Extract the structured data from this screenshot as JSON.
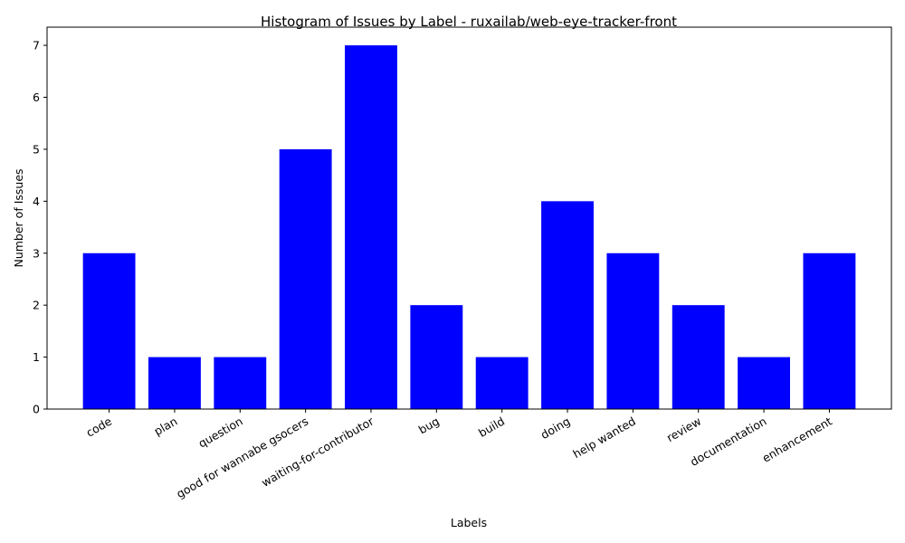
{
  "chart_data": {
    "type": "bar",
    "title": "Histogram of Issues by Label - ruxailab/web-eye-tracker-front",
    "xlabel": "Labels",
    "ylabel": "Number of Issues",
    "categories": [
      "code",
      "plan",
      "question",
      "good for wannabe gsocers",
      "waiting-for-contributor",
      "bug",
      "build",
      "doing",
      "help wanted",
      "review",
      "documentation",
      "enhancement"
    ],
    "values": [
      3,
      1,
      1,
      5,
      7,
      2,
      1,
      4,
      3,
      2,
      1,
      3
    ],
    "ylim": [
      0,
      7.35
    ],
    "yticks": [
      "0",
      "1",
      "2",
      "3",
      "4",
      "5",
      "6",
      "7"
    ],
    "bar_color": "#0000ff",
    "grid": false,
    "legend": "none"
  }
}
